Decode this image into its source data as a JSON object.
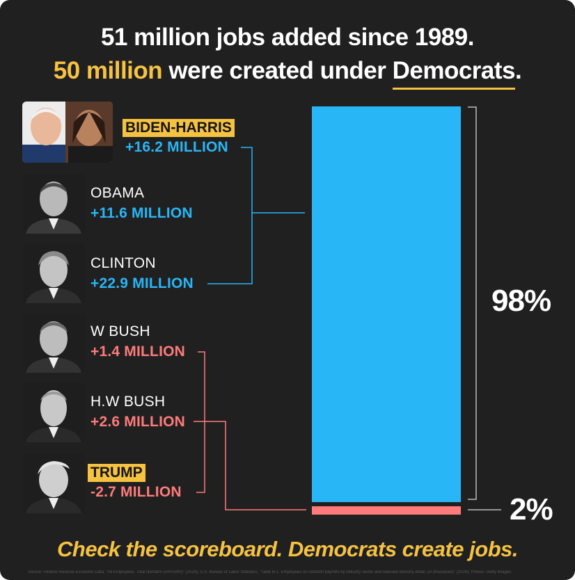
{
  "headline": {
    "line1": "51 million jobs added since 1989.",
    "line2_highlight": "50 million",
    "line2_mid": " were created under ",
    "line2_end": "Democrats",
    "line2_period": "."
  },
  "presidents": [
    {
      "name": "BIDEN-HARRIS",
      "value": "+16.2 MILLION",
      "party": "D",
      "tagged": true
    },
    {
      "name": "OBAMA",
      "value": "+11.6 MILLION",
      "party": "D",
      "tagged": false
    },
    {
      "name": "CLINTON",
      "value": "+22.9 MILLION",
      "party": "D",
      "tagged": false
    },
    {
      "name": "W BUSH",
      "value": "+1.4 MILLION",
      "party": "R",
      "tagged": false
    },
    {
      "name": "H.W BUSH",
      "value": "+2.6 MILLION",
      "party": "R",
      "tagged": false
    },
    {
      "name": "TRUMP",
      "value": "-2.7 MILLION",
      "party": "R",
      "tagged": true
    }
  ],
  "chart_data": {
    "type": "bar",
    "stacked": true,
    "categories": [
      ""
    ],
    "series": [
      {
        "name": "",
        "values": [
          98
        ],
        "color": "#29b6f6"
      },
      {
        "name": "",
        "values": [
          2
        ],
        "color": "#ff7b7b"
      }
    ],
    "labels": [
      "98%",
      "2%"
    ],
    "ylim": [
      0,
      100
    ]
  },
  "tagline": "Check the scoreboard. Democrats create jobs.",
  "source": "Source: Federal Reserve Economic Data, \"All Employees, Total Nonfarm (PAYEMS)\" (2024); U.S. Bureau of Labor Statistics, \"Table B-1. Employees on nonfarm payrolls by industry sector and selected industry detail, (in thousands)\" (2024); Photos: Getty Images.",
  "colors": {
    "background": "#202020",
    "accent": "#f5c242",
    "democrat": "#29b6f6",
    "republican": "#ff7b7b"
  }
}
